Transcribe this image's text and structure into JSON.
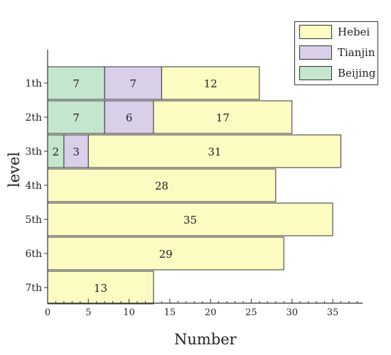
{
  "chart_data": {
    "type": "bar",
    "orientation": "horizontal",
    "stacked": true,
    "categories": [
      "1th",
      "2th",
      "3th",
      "4th",
      "5th",
      "6th",
      "7th"
    ],
    "series": [
      {
        "name": "Beijing",
        "values": [
          7,
          7,
          2,
          0,
          0,
          0,
          0
        ],
        "color": "#c3e6cc"
      },
      {
        "name": "Tianjin",
        "values": [
          7,
          6,
          3,
          0,
          0,
          0,
          0
        ],
        "color": "#d9cfe9"
      },
      {
        "name": "Hebei",
        "values": [
          12,
          17,
          31,
          28,
          35,
          29,
          13
        ],
        "color": "#fbfbc2"
      }
    ],
    "xlabel": "Number",
    "ylabel": "level",
    "xlim": [
      0,
      39
    ],
    "xticks": [
      0,
      5,
      10,
      15,
      20,
      25,
      30,
      35
    ],
    "legend": {
      "placement": "top-right",
      "entries": [
        "Hebei",
        "Tianjin",
        "Beijing"
      ]
    }
  }
}
